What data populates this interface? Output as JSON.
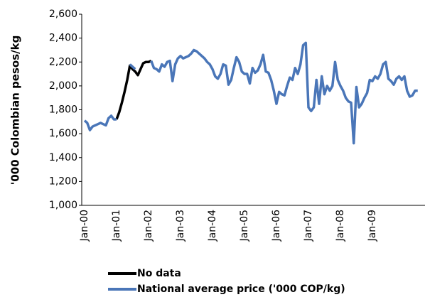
{
  "chart_data": {
    "type": "line",
    "y_label": "'000 Colombian pesos/kg",
    "categories": [
      "Jan-00",
      null,
      null,
      null,
      null,
      null,
      null,
      null,
      null,
      null,
      null,
      null,
      "Jan-01",
      null,
      null,
      null,
      null,
      null,
      null,
      null,
      null,
      null,
      null,
      null,
      "Jan-02",
      null,
      null,
      null,
      null,
      null,
      null,
      null,
      null,
      null,
      null,
      null,
      "Jan-03",
      null,
      null,
      null,
      null,
      null,
      null,
      null,
      null,
      null,
      null,
      null,
      "Jan-04",
      null,
      null,
      null,
      null,
      null,
      null,
      null,
      null,
      null,
      null,
      null,
      "Jan-05",
      null,
      null,
      null,
      null,
      null,
      null,
      null,
      null,
      null,
      null,
      null,
      "Jan-06",
      null,
      null,
      null,
      null,
      null,
      null,
      null,
      null,
      null,
      null,
      null,
      "Jan-07",
      null,
      null,
      null,
      null,
      null,
      null,
      null,
      null,
      null,
      null,
      null,
      "Jan-08",
      null,
      null,
      null,
      null,
      null,
      null,
      null,
      null,
      null,
      null,
      null,
      "Jan-09",
      null,
      null,
      null,
      null,
      null,
      null,
      null,
      null,
      null,
      null,
      null,
      null,
      null,
      null,
      null,
      null,
      null
    ],
    "series": [
      {
        "name": "No data",
        "color": "#000000",
        "values": [
          null,
          null,
          null,
          null,
          null,
          null,
          null,
          null,
          null,
          null,
          null,
          null,
          1720,
          1780,
          1860,
          1950,
          2050,
          2170,
          2140,
          2120,
          2090,
          2140,
          2190,
          2200,
          2200,
          2210,
          null,
          null,
          null,
          null,
          null,
          null,
          null,
          null,
          null,
          null,
          null,
          null,
          null,
          null,
          null,
          null,
          null,
          null,
          null,
          null,
          null,
          null,
          null,
          null,
          null,
          null,
          null,
          null,
          null,
          null,
          null,
          null,
          null,
          null,
          null,
          null,
          null,
          null,
          null,
          null,
          null,
          null,
          null,
          null,
          null,
          null,
          null,
          null,
          null,
          null,
          null,
          null,
          null,
          null,
          null,
          null,
          null,
          null,
          null,
          null,
          null,
          null,
          null,
          null,
          null,
          null,
          null,
          null,
          null,
          null,
          null,
          null,
          null,
          null,
          null,
          null,
          null,
          null,
          null,
          null,
          null,
          null,
          null,
          null,
          null,
          null,
          null,
          null,
          null,
          null,
          null,
          null,
          null,
          null,
          null,
          null,
          null,
          null,
          null,
          null
        ]
      },
      {
        "name": "National average price ('000 COP/kg)",
        "color": "#4a76b8",
        "values": [
          1710,
          1690,
          1630,
          1660,
          1670,
          1680,
          1690,
          1680,
          1670,
          1730,
          1750,
          1720,
          1720,
          null,
          null,
          null,
          null,
          2180,
          2160,
          2140,
          null,
          null,
          null,
          null,
          null,
          2210,
          2150,
          2140,
          2120,
          2180,
          2160,
          2200,
          2210,
          2040,
          2180,
          2230,
          2250,
          2230,
          2240,
          2250,
          2270,
          2300,
          2290,
          2270,
          2250,
          2230,
          2200,
          2180,
          2140,
          2080,
          2060,
          2100,
          2180,
          2170,
          2010,
          2050,
          2150,
          2240,
          2200,
          2120,
          2100,
          2100,
          2020,
          2150,
          2110,
          2130,
          2180,
          2260,
          2120,
          2110,
          2050,
          1960,
          1850,
          1950,
          1930,
          1920,
          2000,
          2070,
          2050,
          2150,
          2100,
          2180,
          2340,
          2360,
          1820,
          1790,
          1820,
          2050,
          1850,
          2080,
          1930,
          2000,
          1960,
          2000,
          2200,
          2050,
          2000,
          1960,
          1900,
          1870,
          1860,
          1520,
          1990,
          1820,
          1850,
          1900,
          1940,
          2050,
          2040,
          2080,
          2060,
          2100,
          2180,
          2200,
          2060,
          2040,
          2010,
          2060,
          2080,
          2050,
          2080,
          1960,
          1910,
          1920,
          1960,
          1960
        ]
      }
    ],
    "ylim": [
      1000,
      2600
    ],
    "yticks": [
      {
        "value": 1000,
        "label": "1,000"
      },
      {
        "value": 1200,
        "label": "1,200"
      },
      {
        "value": 1400,
        "label": "1,400"
      },
      {
        "value": 1600,
        "label": "1,600"
      },
      {
        "value": 1800,
        "label": "1,800"
      },
      {
        "value": 2000,
        "label": "2,000"
      },
      {
        "value": 2200,
        "label": "2,200"
      },
      {
        "value": 2400,
        "label": "2,400"
      },
      {
        "value": 2600,
        "label": "2,600"
      }
    ],
    "grid": false
  }
}
